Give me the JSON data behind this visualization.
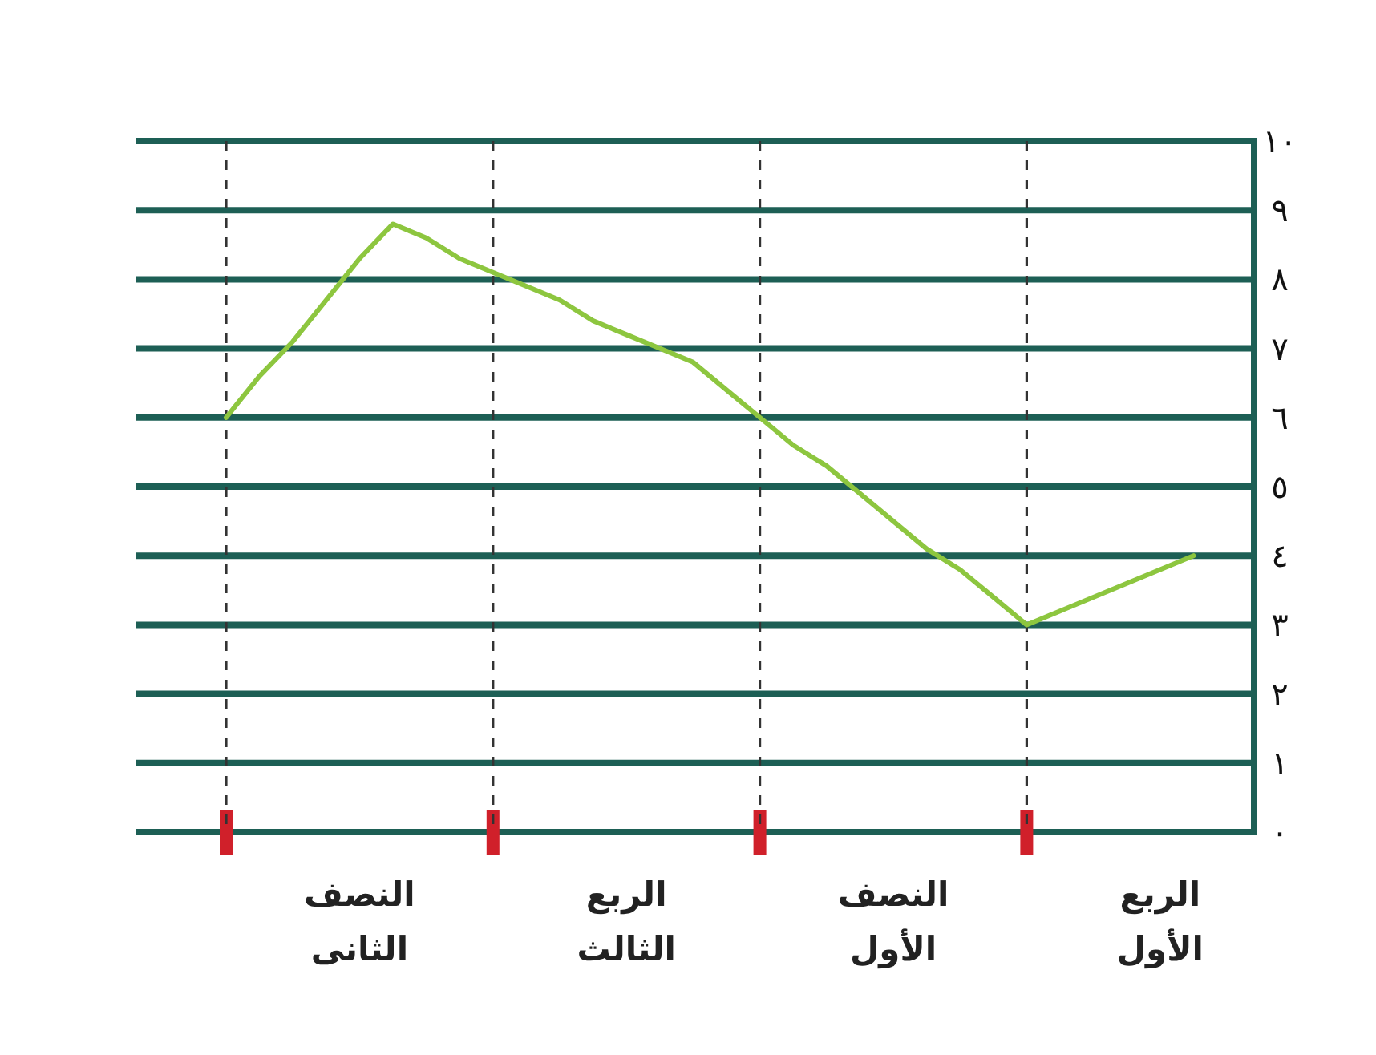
{
  "chart_data": {
    "type": "line",
    "categories": [
      null,
      null,
      null,
      null,
      "النصف الثانى",
      null,
      null,
      null,
      null,
      null,
      null,
      null,
      "الربع الثالث",
      null,
      null,
      null,
      null,
      null,
      null,
      null,
      "النصف الأول",
      null,
      null,
      null,
      null,
      null,
      null,
      null,
      "الربع الأول",
      null,
      null
    ],
    "values": [
      6,
      6.6,
      7.1,
      7.7,
      8.3,
      8.8,
      8.6,
      8.3,
      8.1,
      7.9,
      7.7,
      7.4,
      7.2,
      7,
      6.8,
      6.4,
      6,
      5.6,
      5.3,
      4.9,
      4.5,
      4.1,
      3.8,
      3.4,
      3,
      3.2,
      3.4,
      3.6,
      3.8,
      4,
      null
    ],
    "color": "#8dc63f",
    "ylim": [
      0,
      10
    ],
    "yticks": [
      {
        "value": 0,
        "label": "٠"
      },
      {
        "value": 1,
        "label": "١"
      },
      {
        "value": 2,
        "label": "٢"
      },
      {
        "value": 3,
        "label": "٣"
      },
      {
        "value": 4,
        "label": "٤"
      },
      {
        "value": 5,
        "label": "٥"
      },
      {
        "value": 6,
        "label": "٦"
      },
      {
        "value": 7,
        "label": "٧"
      },
      {
        "value": 8,
        "label": "٨"
      },
      {
        "value": 9,
        "label": "٩"
      },
      {
        "value": 10,
        "label": "١٠"
      }
    ],
    "grid": true,
    "line_style": "solid"
  }
}
